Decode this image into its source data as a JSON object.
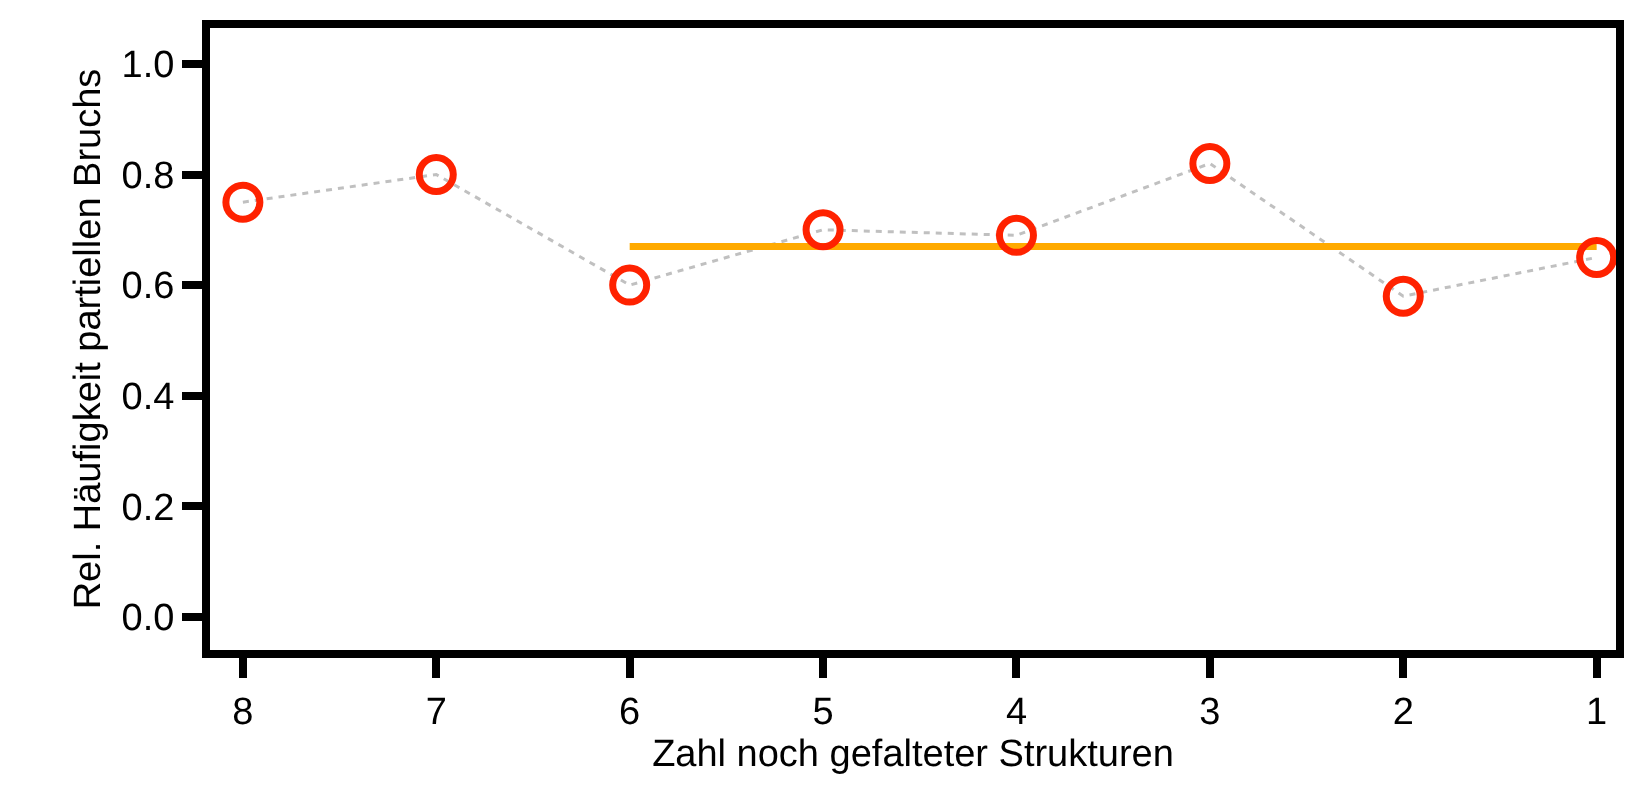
{
  "chart_data": {
    "type": "scatter",
    "xlabel": "Zahl noch gefalteter Strukturen",
    "ylabel": "Rel. Häufigkeit partiellen Bruchs",
    "xlim": [
      8.17,
      0.9
    ],
    "xticks": [
      8,
      7,
      6,
      5,
      4,
      3,
      2,
      1
    ],
    "ylim": [
      -0.06,
      1.065
    ],
    "yticks": [
      {
        "value": 0,
        "label": "0.0"
      },
      0.2,
      0.4,
      0.6,
      0.8,
      {
        "value": 1,
        "label": "1.0"
      }
    ],
    "legend": false,
    "x": [
      8,
      7,
      6,
      5,
      4,
      3,
      2,
      1
    ],
    "series": [
      {
        "type": "line",
        "color": "#c0c0c0",
        "line_style": "dotted",
        "marker": "none",
        "values": [
          0.75,
          0.8,
          0.6,
          0.7,
          0.69,
          0.82,
          0.58,
          0.65
        ]
      },
      {
        "type": "line",
        "color": "#ffaa00",
        "line_style": "solid",
        "marker": "none",
        "x": [
          6,
          1
        ],
        "values": [
          0.67,
          0.67
        ]
      },
      {
        "color": "#ff2200",
        "marker": "circle",
        "values": [
          0.75,
          0.8,
          0.6,
          0.7,
          0.69,
          0.82,
          0.58,
          0.65
        ]
      }
    ]
  }
}
